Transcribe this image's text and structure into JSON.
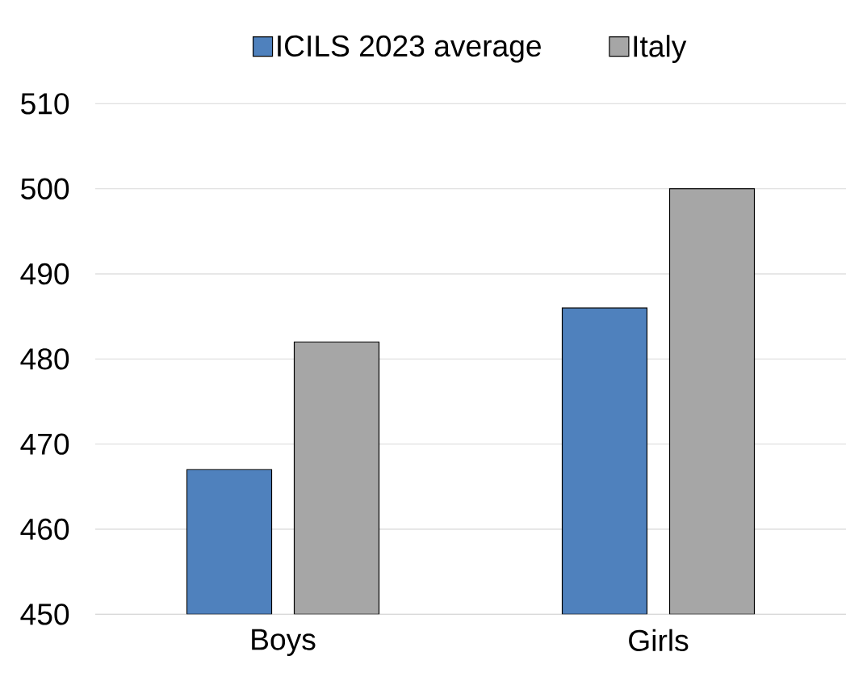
{
  "chart_data": {
    "type": "bar",
    "categories": [
      "Boys",
      "Girls"
    ],
    "series": [
      {
        "name": "ICILS 2023 average",
        "color": "#4f81bd",
        "values": [
          467,
          486
        ]
      },
      {
        "name": "Italy",
        "color": "#a6a6a6",
        "values": [
          482,
          500
        ]
      }
    ],
    "ylim": [
      450,
      510
    ],
    "yticks": [
      450,
      460,
      470,
      480,
      490,
      500,
      510
    ],
    "grid": "y",
    "legend": "top"
  }
}
